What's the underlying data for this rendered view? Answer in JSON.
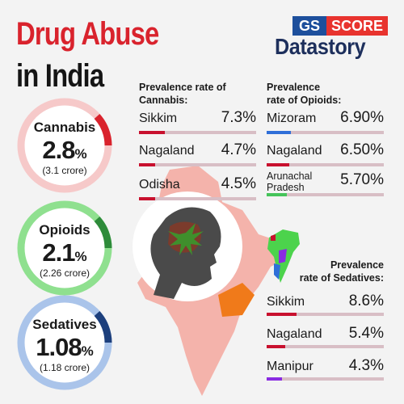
{
  "title": {
    "line1": "Drug Abuse",
    "line2": "in India"
  },
  "brand": {
    "gs": "GS",
    "score": "SCORE",
    "datastory": "Datastory"
  },
  "colors": {
    "red": "#d9232d",
    "green": "#2e8b3a",
    "blue": "#1d4f9c",
    "orange": "#f07a1a"
  },
  "summary": [
    {
      "name": "Cannabis",
      "value": "2.8",
      "unit": "%",
      "sub": "(3.1 crore)",
      "ring_color": "#f6c9c9",
      "accent": "#d9232d"
    },
    {
      "name": "Opioids",
      "value": "2.1",
      "unit": "%",
      "sub": "(2.26 crore)",
      "ring_color": "#8fe08f",
      "accent": "#2e8b3a"
    },
    {
      "name": "Sedatives",
      "value": "1.08",
      "unit": "%",
      "sub": "(1.18 crore)",
      "ring_color": "#aac4ea",
      "accent": "#1d3f7c"
    }
  ],
  "chart_data": [
    {
      "type": "bar",
      "title": "Prevalence rate of Cannabis:",
      "categories": [
        "Sikkim",
        "Nagaland",
        "Odisha"
      ],
      "labels": [
        "7.3%",
        "4.7%",
        "4.5%"
      ],
      "values": [
        7.3,
        4.7,
        4.5
      ],
      "bar_color": "#c8102e"
    },
    {
      "type": "bar",
      "title": "Prevalence rate of Opioids:",
      "categories": [
        "Mizoram",
        "Nagaland",
        "Arunachal Pradesh"
      ],
      "labels": [
        "6.90%",
        "6.50%",
        "5.70%"
      ],
      "values": [
        6.9,
        6.5,
        5.7
      ],
      "bar_colors": [
        "#2f6fd8",
        "#c8102e",
        "#45c45a"
      ]
    },
    {
      "type": "bar",
      "title": "Prevalence rate of Sedatives:",
      "categories": [
        "Sikkim",
        "Nagaland",
        "Manipur"
      ],
      "labels": [
        "8.6%",
        "5.4%",
        "4.3%"
      ],
      "values": [
        8.6,
        5.4,
        4.3
      ],
      "bar_colors": [
        "#c8102e",
        "#c8102e",
        "#8a2be2"
      ]
    }
  ]
}
